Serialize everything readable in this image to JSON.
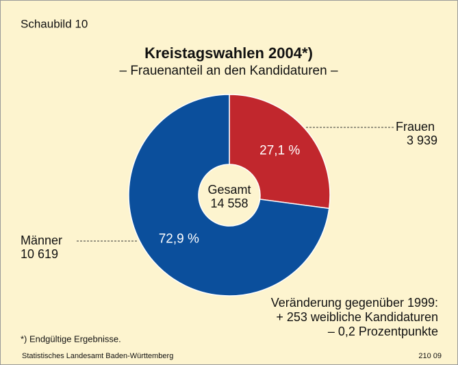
{
  "chart_data": {
    "type": "pie",
    "label": "Schaubild 10",
    "title": "Kreistagswahlen 2004*)",
    "subtitle": "– Frauenanteil an den Kandidaturen –",
    "categories": [
      "Frauen",
      "Männer"
    ],
    "values": [
      27.1,
      72.9
    ],
    "value_labels": [
      "27,1 %",
      "72,9 %"
    ],
    "counts": [
      {
        "value": 3939,
        "label": "3 939"
      },
      {
        "value": 10619,
        "label": "10 619"
      }
    ],
    "colors": [
      "#c1272d",
      "#0b4f9c"
    ],
    "center_label": "Gesamt",
    "total": {
      "value": 14558,
      "label": "14 558"
    },
    "annotation": [
      "Veränderung gegenüber 1999:",
      "+ 253 weibliche Kandidaturen",
      "– 0,2 Prozentpunkte"
    ],
    "footnote": "*) Endgültige Ergebnisse.",
    "source": "Statistisches Landesamt Baden-Württemberg",
    "code": "210 09"
  }
}
